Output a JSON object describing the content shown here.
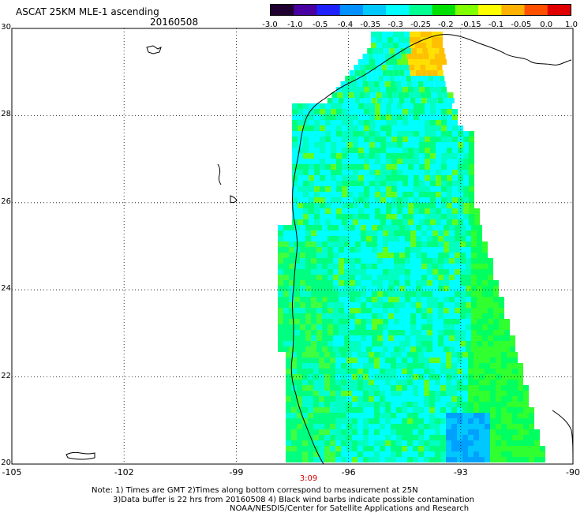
{
  "header": {
    "title": "ASCAT 25KM MLE-1 ascending",
    "date": "20160508"
  },
  "colorbar": {
    "tick_labels": [
      "-3.0",
      "-1.0",
      "-0.5",
      "-0.4",
      "-0.35",
      "-0.3",
      "-0.25",
      "-0.2",
      "-0.15",
      "-0.1",
      "-0.05",
      "0.0",
      "1.0"
    ],
    "colors": [
      "#200030",
      "#4800a0",
      "#2020ff",
      "#0090ff",
      "#00c8ff",
      "#00ffff",
      "#00ff90",
      "#00e000",
      "#80ff00",
      "#ffff00",
      "#ffb000",
      "#ff5000",
      "#e00000"
    ]
  },
  "axes": {
    "y_labels": [
      "30",
      "28",
      "26",
      "24",
      "22",
      "20"
    ],
    "x_labels": [
      "-105",
      "-102",
      "-99",
      "-96",
      "-93",
      "-90"
    ],
    "lat_range": [
      20,
      30
    ],
    "lon_range": [
      -105,
      -90
    ],
    "grid": true
  },
  "time_label": "3:09",
  "notes": {
    "line1": "Note: 1) Times are GMT 2)Times along bottom correspond to measurement at 25N",
    "line2": "3)Data buffer is 22 hrs from 20160508 4) Black wind barbs indicate possible contamination",
    "line3": "NOAA/NESDIS/Center for Satellite Applications and Research"
  }
}
